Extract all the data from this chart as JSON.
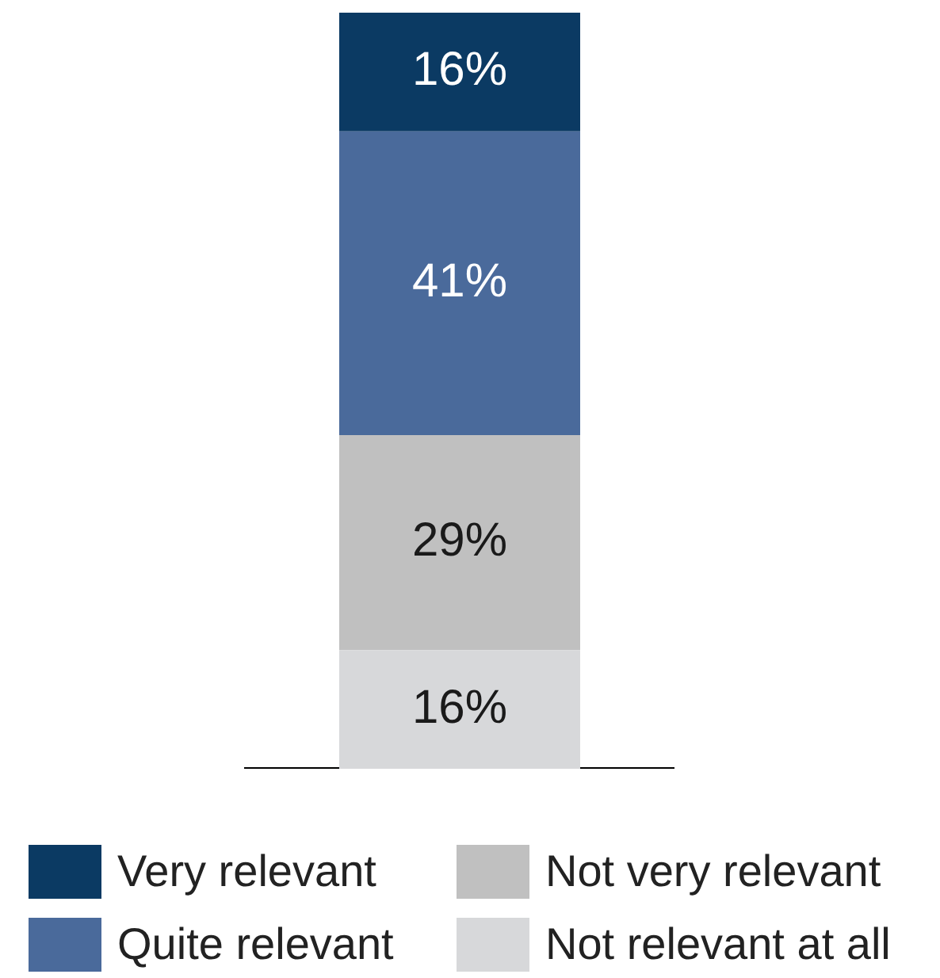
{
  "chart_data": {
    "type": "bar",
    "stacked": true,
    "categories": [
      null
    ],
    "legend": "bottom",
    "series": [
      {
        "name": "Not relevant at all",
        "color": "#d7d8da",
        "values": [
          16
        ],
        "value_labels": [
          "16%"
        ]
      },
      {
        "name": "Not very relevant",
        "color": "#c0c0c0",
        "values": [
          29
        ],
        "value_labels": [
          "29%"
        ]
      },
      {
        "name": "Quite relevant",
        "color": "#4a6a9b",
        "values": [
          41
        ],
        "value_labels": [
          "41%"
        ]
      },
      {
        "name": "Very relevant",
        "color": "#0b3a63",
        "values": [
          16
        ],
        "value_labels": [
          "16%"
        ]
      }
    ]
  }
}
